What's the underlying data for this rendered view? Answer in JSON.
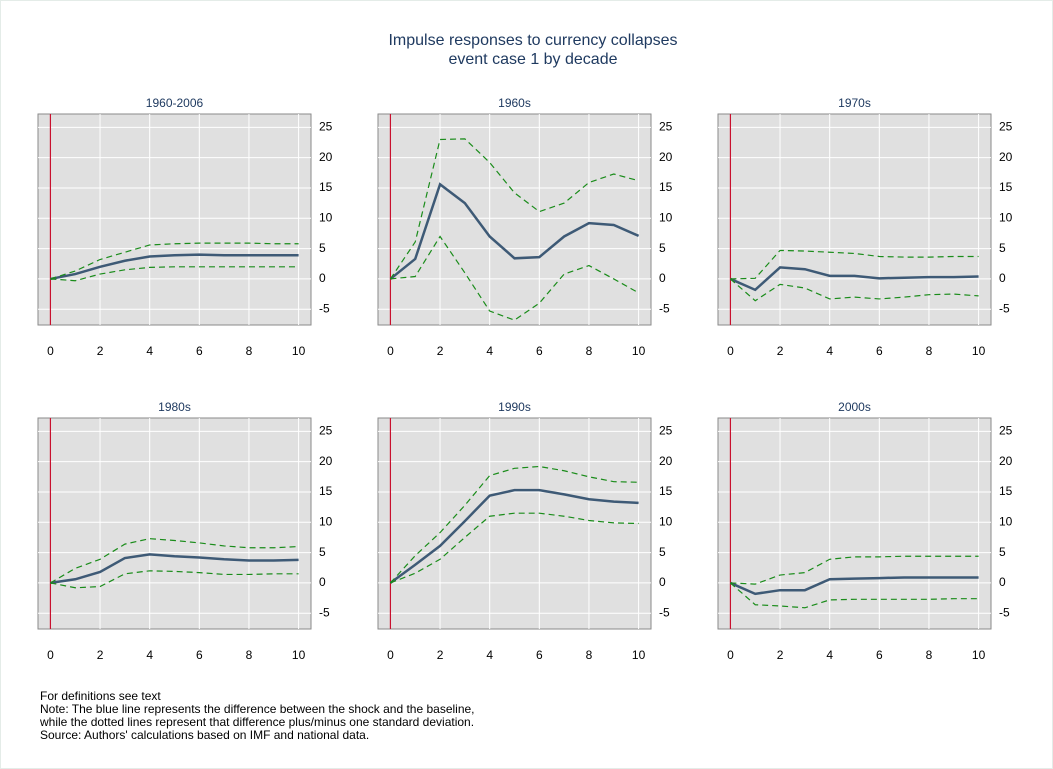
{
  "title": "Impulse responses to currency collapses",
  "subtitle": "event case 1 by decade",
  "chart_data": [
    {
      "type": "line",
      "title": "1960-2006",
      "x": [
        0,
        1,
        2,
        3,
        4,
        5,
        6,
        7,
        8,
        9,
        10
      ],
      "series": [
        {
          "color": "#3e5a76",
          "style": "solid",
          "values": [
            0,
            0.8,
            2,
            3,
            3.7,
            3.9,
            4,
            3.9,
            3.9,
            3.9,
            3.9
          ]
        },
        {
          "color": "#1a8c1a",
          "style": "dashed",
          "values": [
            0,
            1.3,
            3.2,
            4.4,
            5.6,
            5.8,
            5.9,
            5.9,
            5.9,
            5.8,
            5.8
          ]
        },
        {
          "color": "#1a8c1a",
          "style": "dashed",
          "values": [
            0,
            -0.3,
            0.8,
            1.5,
            1.9,
            2,
            2,
            2,
            2,
            2,
            2
          ]
        }
      ],
      "xlim": [
        -0.5,
        10.5
      ],
      "ylim": [
        -7.6,
        27.2
      ],
      "xticks": [
        0,
        2,
        4,
        6,
        8,
        10
      ],
      "yticks": [
        -5,
        0,
        5,
        10,
        15,
        20,
        25
      ],
      "grid": true,
      "reference_line": {
        "x": 0,
        "color": "#c8102e"
      }
    },
    {
      "type": "line",
      "title": "1960s",
      "x": [
        0,
        1,
        2,
        3,
        4,
        5,
        6,
        7,
        8,
        9,
        10
      ],
      "series": [
        {
          "color": "#3e5a76",
          "style": "solid",
          "values": [
            0,
            3.3,
            15.6,
            12.5,
            7,
            3.4,
            3.6,
            7,
            9.2,
            8.9,
            7.1
          ]
        },
        {
          "color": "#1a8c1a",
          "style": "dashed",
          "values": [
            0,
            6.1,
            23,
            23.1,
            19.2,
            14.2,
            11.1,
            12.5,
            15.9,
            17.3,
            16.2
          ]
        },
        {
          "color": "#1a8c1a",
          "style": "dashed",
          "values": [
            0,
            0.4,
            7,
            1,
            -5.3,
            -6.8,
            -4,
            0.8,
            2.2,
            0,
            -2.3
          ]
        }
      ],
      "xlim": [
        -0.5,
        10.5
      ],
      "ylim": [
        -7.6,
        27.2
      ],
      "xticks": [
        0,
        2,
        4,
        6,
        8,
        10
      ],
      "yticks": [
        -5,
        0,
        5,
        10,
        15,
        20,
        25
      ],
      "grid": true,
      "reference_line": {
        "x": 0,
        "color": "#c8102e"
      }
    },
    {
      "type": "line",
      "title": "1970s",
      "x": [
        0,
        1,
        2,
        3,
        4,
        5,
        6,
        7,
        8,
        9,
        10
      ],
      "series": [
        {
          "color": "#3e5a76",
          "style": "solid",
          "values": [
            0,
            -1.8,
            1.9,
            1.6,
            0.5,
            0.5,
            0.1,
            0.2,
            0.3,
            0.3,
            0.4
          ]
        },
        {
          "color": "#1a8c1a",
          "style": "dashed",
          "values": [
            0,
            0.1,
            4.7,
            4.6,
            4.4,
            4.2,
            3.7,
            3.6,
            3.6,
            3.7,
            3.7
          ]
        },
        {
          "color": "#1a8c1a",
          "style": "dashed",
          "values": [
            0,
            -3.6,
            -0.9,
            -1.5,
            -3.3,
            -3,
            -3.3,
            -3,
            -2.6,
            -2.5,
            -2.8
          ]
        }
      ],
      "xlim": [
        -0.5,
        10.5
      ],
      "ylim": [
        -7.6,
        27.2
      ],
      "xticks": [
        0,
        2,
        4,
        6,
        8,
        10
      ],
      "yticks": [
        -5,
        0,
        5,
        10,
        15,
        20,
        25
      ],
      "grid": true,
      "reference_line": {
        "x": 0,
        "color": "#c8102e"
      }
    },
    {
      "type": "line",
      "title": "1980s",
      "x": [
        0,
        1,
        2,
        3,
        4,
        5,
        6,
        7,
        8,
        9,
        10
      ],
      "series": [
        {
          "color": "#3e5a76",
          "style": "solid",
          "values": [
            0,
            0.6,
            1.8,
            4.1,
            4.7,
            4.4,
            4.2,
            3.9,
            3.7,
            3.7,
            3.8
          ]
        },
        {
          "color": "#1a8c1a",
          "style": "dashed",
          "values": [
            0,
            2.4,
            3.9,
            6.4,
            7.3,
            7,
            6.6,
            6.1,
            5.8,
            5.8,
            6
          ]
        },
        {
          "color": "#1a8c1a",
          "style": "dashed",
          "values": [
            0,
            -0.8,
            -0.6,
            1.5,
            2,
            1.9,
            1.7,
            1.4,
            1.4,
            1.5,
            1.5
          ]
        }
      ],
      "xlim": [
        -0.5,
        10.5
      ],
      "ylim": [
        -7.6,
        27.2
      ],
      "xticks": [
        0,
        2,
        4,
        6,
        8,
        10
      ],
      "yticks": [
        -5,
        0,
        5,
        10,
        15,
        20,
        25
      ],
      "grid": true,
      "reference_line": {
        "x": 0,
        "color": "#c8102e"
      }
    },
    {
      "type": "line",
      "title": "1990s",
      "x": [
        0,
        1,
        2,
        3,
        4,
        5,
        6,
        7,
        8,
        9,
        10
      ],
      "series": [
        {
          "color": "#3e5a76",
          "style": "solid",
          "values": [
            0,
            3,
            6.1,
            10.2,
            14.4,
            15.3,
            15.3,
            14.6,
            13.8,
            13.4,
            13.2
          ]
        },
        {
          "color": "#1a8c1a",
          "style": "dashed",
          "values": [
            0,
            4.5,
            8.3,
            12.8,
            17.7,
            18.9,
            19.2,
            18.5,
            17.5,
            16.7,
            16.6
          ]
        },
        {
          "color": "#1a8c1a",
          "style": "dashed",
          "values": [
            0,
            1.6,
            3.9,
            7.5,
            11,
            11.5,
            11.5,
            11,
            10.3,
            9.9,
            9.8
          ]
        }
      ],
      "xlim": [
        -0.5,
        10.5
      ],
      "ylim": [
        -7.6,
        27.2
      ],
      "xticks": [
        0,
        2,
        4,
        6,
        8,
        10
      ],
      "yticks": [
        -5,
        0,
        5,
        10,
        15,
        20,
        25
      ],
      "grid": true,
      "reference_line": {
        "x": 0,
        "color": "#c8102e"
      }
    },
    {
      "type": "line",
      "title": "2000s",
      "x": [
        0,
        1,
        2,
        3,
        4,
        5,
        6,
        7,
        8,
        9,
        10
      ],
      "series": [
        {
          "color": "#3e5a76",
          "style": "solid",
          "values": [
            0,
            -1.8,
            -1.2,
            -1.2,
            0.6,
            0.7,
            0.8,
            0.9,
            0.9,
            0.9,
            0.9
          ]
        },
        {
          "color": "#1a8c1a",
          "style": "dashed",
          "values": [
            0,
            -0.2,
            1.3,
            1.7,
            3.9,
            4.3,
            4.3,
            4.4,
            4.4,
            4.4,
            4.4
          ]
        },
        {
          "color": "#1a8c1a",
          "style": "dashed",
          "values": [
            0,
            -3.6,
            -3.8,
            -4.1,
            -2.8,
            -2.7,
            -2.7,
            -2.7,
            -2.7,
            -2.6,
            -2.6
          ]
        }
      ],
      "xlim": [
        -0.5,
        10.5
      ],
      "ylim": [
        -7.6,
        27.2
      ],
      "xticks": [
        0,
        2,
        4,
        6,
        8,
        10
      ],
      "yticks": [
        -5,
        0,
        5,
        10,
        15,
        20,
        25
      ],
      "grid": true,
      "reference_line": {
        "x": 0,
        "color": "#c8102e"
      }
    }
  ],
  "notes": [
    "For definitions see text",
    "Note: The blue line represents the difference between the shock and the baseline,",
    "while the dotted lines represent that difference plus/minus one standard deviation.",
    "Source: Authors' calculations based on IMF and national data."
  ]
}
